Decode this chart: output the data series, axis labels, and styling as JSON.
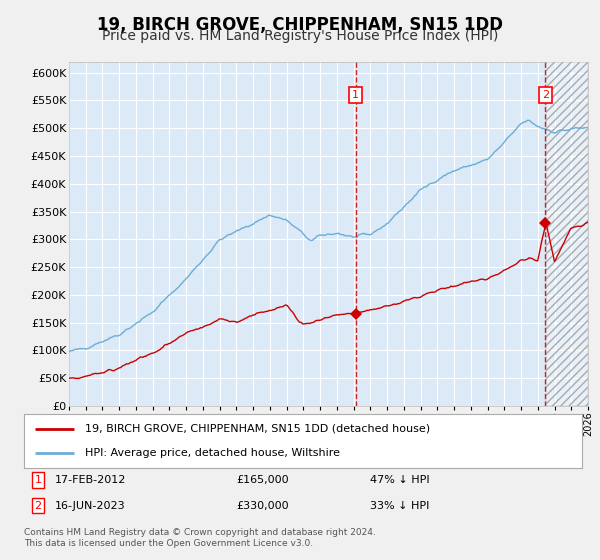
{
  "title": "19, BIRCH GROVE, CHIPPENHAM, SN15 1DD",
  "subtitle": "Price paid vs. HM Land Registry's House Price Index (HPI)",
  "title_fontsize": 12,
  "subtitle_fontsize": 10,
  "xlim": [
    1995,
    2026
  ],
  "ylim": [
    0,
    620000
  ],
  "yticks": [
    0,
    50000,
    100000,
    150000,
    200000,
    250000,
    300000,
    350000,
    400000,
    450000,
    500000,
    550000,
    600000
  ],
  "ytick_labels": [
    "£0",
    "£50K",
    "£100K",
    "£150K",
    "£200K",
    "£250K",
    "£300K",
    "£350K",
    "£400K",
    "£450K",
    "£500K",
    "£550K",
    "£600K"
  ],
  "hpi_line_color": "#6baed6",
  "price_color": "#cc0000",
  "marker_color": "#cc0000",
  "event1_x": 2012.12,
  "event1_y": 165000,
  "event2_x": 2023.46,
  "event2_y": 330000,
  "event1_label": "17-FEB-2012",
  "event1_price": "£165,000",
  "event1_hpi": "47% ↓ HPI",
  "event2_label": "16-JUN-2023",
  "event2_price": "£330,000",
  "event2_hpi": "33% ↓ HPI",
  "legend_line1": "19, BIRCH GROVE, CHIPPENHAM, SN15 1DD (detached house)",
  "legend_line2": "HPI: Average price, detached house, Wiltshire",
  "footer": "Contains HM Land Registry data © Crown copyright and database right 2024.\nThis data is licensed under the Open Government Licence v3.0.",
  "fig_bg": "#f0f0f0",
  "plot_bg": "#dce9f7",
  "grid_color": "#ffffff",
  "hatch_region_start": 2023.46
}
